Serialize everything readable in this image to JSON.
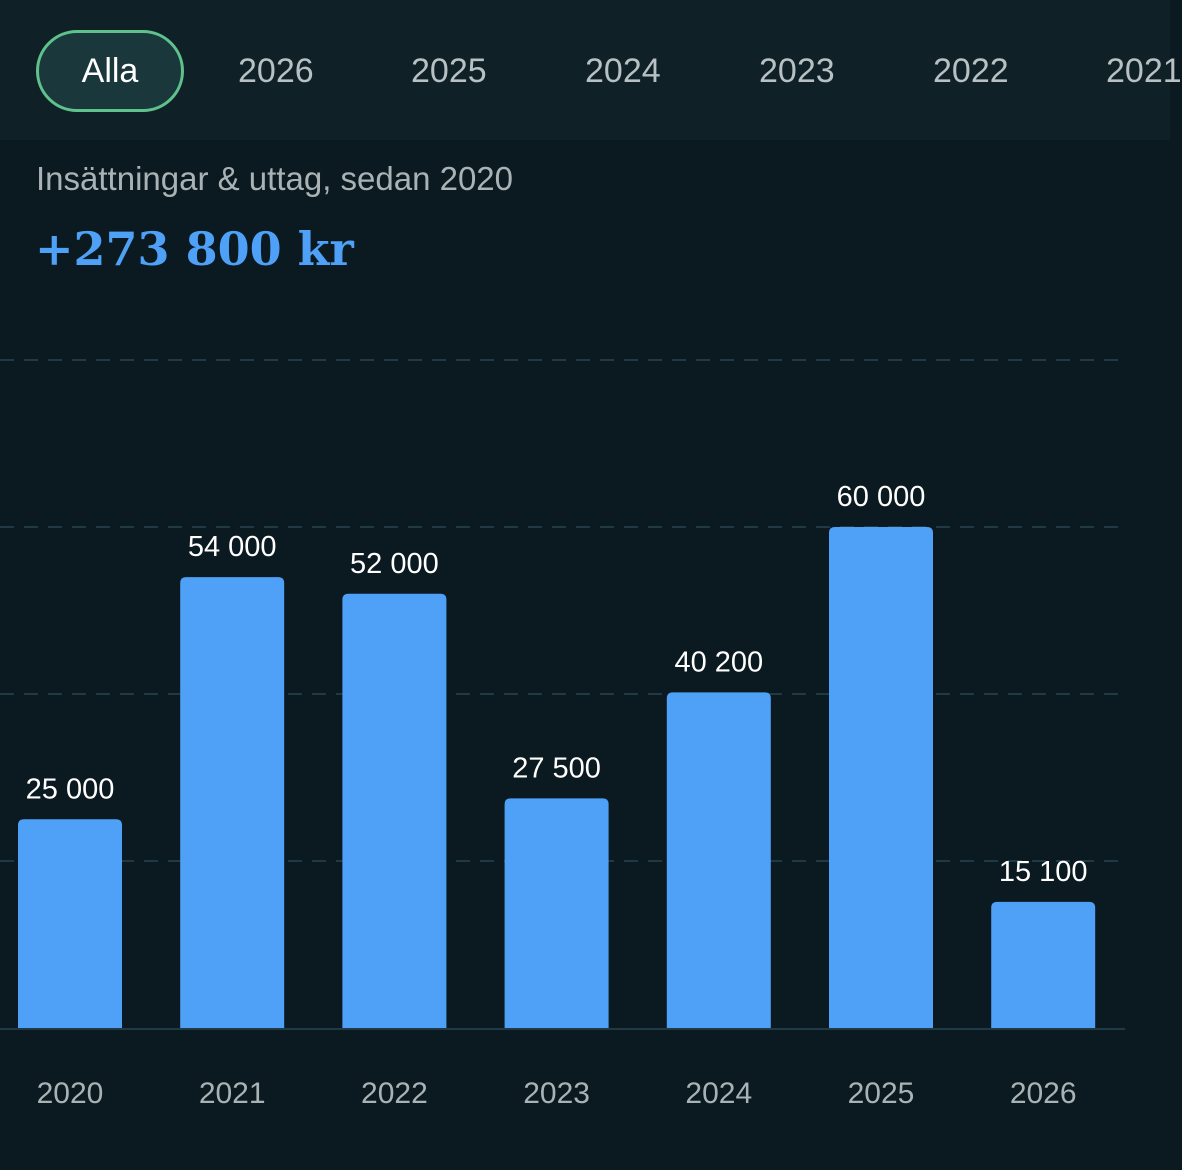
{
  "filter_tabs": {
    "active": "Alla",
    "items": [
      "Alla",
      "2026",
      "2025",
      "2024",
      "2023",
      "2022",
      "2021"
    ]
  },
  "summary": {
    "subtitle": "Insättningar & uttag, sedan 2020",
    "total": "+273 800 kr"
  },
  "colors": {
    "bar": "#4ea1f7",
    "total_text": "#4ea1f7",
    "active_tab_border": "#5fc18c",
    "background": "#0b1a20",
    "gridline": "#1f3a44"
  },
  "chart_data": {
    "type": "bar",
    "title": "",
    "xlabel": "",
    "ylabel": "",
    "categories": [
      "2020",
      "2021",
      "2022",
      "2023",
      "2024",
      "2025",
      "2026"
    ],
    "values": [
      25000,
      54000,
      52000,
      27500,
      40200,
      60000,
      15100
    ],
    "value_labels": [
      "25 000",
      "54 000",
      "52 000",
      "27 500",
      "40 200",
      "60 000",
      "15 100"
    ],
    "ylim": [
      0,
      80000
    ],
    "grid": true,
    "grid_values": [
      20000,
      40000,
      60000,
      80000
    ],
    "legend": "none"
  }
}
